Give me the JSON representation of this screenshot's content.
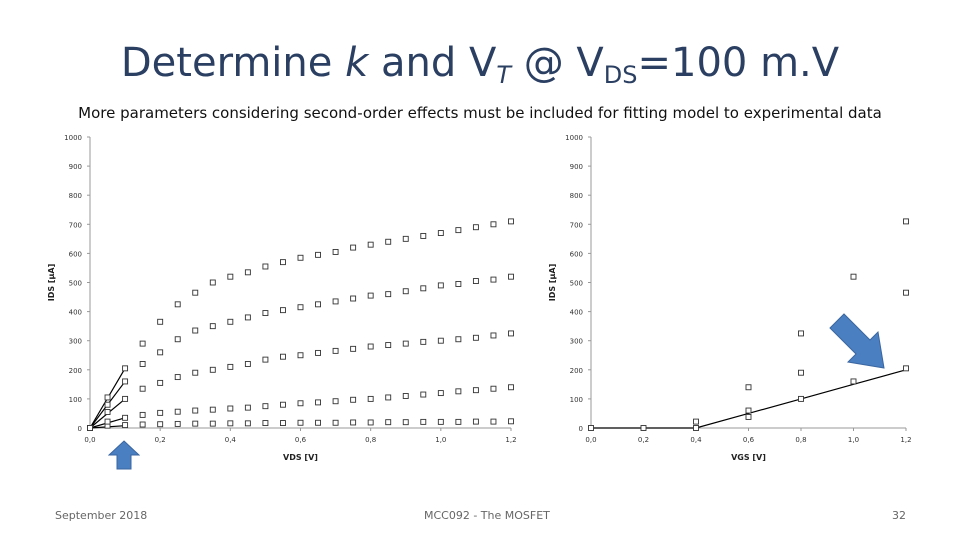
{
  "slide": {
    "title_prefix": "Determine ",
    "title_k": "k",
    "title_and": " and ",
    "title_V": "V",
    "title_T": "T",
    "title_at": " @ V",
    "title_DS": "DS",
    "title_suffix": "=100 m.V",
    "subtitle": "More parameters considering second-order effects must be included for fitting model to experimental data",
    "footer_left": "September 2018",
    "footer_center": "MCC092 - The MOSFET",
    "footer_right": "32"
  },
  "colors": {
    "title": "#2a3f62",
    "arrow": "#4a7fc1",
    "marker": "#333333",
    "line": "#000000"
  },
  "icons": [
    "up-arrow-icon",
    "down-right-arrow-icon"
  ],
  "chart_data": [
    {
      "type": "scatter",
      "xlabel": "VDS [V]",
      "ylabel": "IDS [μA]",
      "xlim": [
        0,
        1.2
      ],
      "ylim": [
        0,
        1000
      ],
      "xticks": [
        "0,0",
        "0,2",
        "0,4",
        "0,6",
        "0,8",
        "1,0",
        "1,2"
      ],
      "yticks": [
        "0",
        "100",
        "200",
        "300",
        "400",
        "500",
        "600",
        "700",
        "800",
        "900",
        "1000"
      ],
      "grid": false,
      "series": [
        {
          "x": [
            0,
            0.05,
            0.1,
            0.15,
            0.2,
            0.25,
            0.3,
            0.35,
            0.4,
            0.45,
            0.5,
            0.55,
            0.6,
            0.65,
            0.7,
            0.75,
            0.8,
            0.85,
            0.9,
            0.95,
            1.0,
            1.05,
            1.1,
            1.15,
            1.2
          ],
          "y": [
            0,
            8,
            10,
            12,
            13,
            14,
            15,
            15,
            16,
            16,
            17,
            17,
            18,
            18,
            18,
            19,
            19,
            20,
            20,
            21,
            21,
            21,
            22,
            22,
            23
          ]
        },
        {
          "x": [
            0,
            0.05,
            0.1,
            0.15,
            0.2,
            0.25,
            0.3,
            0.35,
            0.4,
            0.45,
            0.5,
            0.55,
            0.6,
            0.65,
            0.7,
            0.75,
            0.8,
            0.85,
            0.9,
            0.95,
            1.0,
            1.05,
            1.1,
            1.15,
            1.2
          ],
          "y": [
            0,
            22,
            35,
            45,
            52,
            56,
            60,
            63,
            67,
            70,
            75,
            80,
            85,
            88,
            92,
            97,
            100,
            105,
            110,
            115,
            120,
            126,
            130,
            135,
            140
          ]
        },
        {
          "x": [
            0,
            0.05,
            0.1,
            0.15,
            0.2,
            0.25,
            0.3,
            0.35,
            0.4,
            0.45,
            0.5,
            0.55,
            0.6,
            0.65,
            0.7,
            0.75,
            0.8,
            0.85,
            0.9,
            0.95,
            1.0,
            1.05,
            1.1,
            1.15,
            1.2
          ],
          "y": [
            0,
            55,
            100,
            135,
            155,
            175,
            190,
            200,
            210,
            220,
            235,
            245,
            250,
            258,
            265,
            272,
            280,
            285,
            290,
            296,
            300,
            305,
            310,
            318,
            325
          ]
        },
        {
          "x": [
            0,
            0.05,
            0.1,
            0.15,
            0.2,
            0.25,
            0.3,
            0.35,
            0.4,
            0.45,
            0.5,
            0.55,
            0.6,
            0.65,
            0.7,
            0.75,
            0.8,
            0.85,
            0.9,
            0.95,
            1.0,
            1.05,
            1.1,
            1.15,
            1.2
          ],
          "y": [
            0,
            80,
            160,
            220,
            260,
            305,
            335,
            350,
            365,
            380,
            395,
            405,
            415,
            425,
            435,
            445,
            455,
            460,
            470,
            480,
            490,
            495,
            505,
            510,
            520
          ]
        },
        {
          "x": [
            0,
            0.05,
            0.1,
            0.15,
            0.2,
            0.25,
            0.3,
            0.35,
            0.4,
            0.45,
            0.5,
            0.55,
            0.6,
            0.65,
            0.7,
            0.75,
            0.8,
            0.85,
            0.9,
            0.95,
            1.0,
            1.05,
            1.1,
            1.15,
            1.2
          ],
          "y": [
            0,
            105,
            205,
            290,
            365,
            425,
            465,
            500,
            520,
            535,
            555,
            570,
            585,
            595,
            605,
            620,
            630,
            640,
            650,
            660,
            670,
            680,
            690,
            700,
            710
          ]
        }
      ],
      "fit_lines": [
        {
          "x": [
            0,
            0.1
          ],
          "y": [
            0,
            8
          ]
        },
        {
          "x": [
            0,
            0.1
          ],
          "y": [
            0,
            35
          ]
        },
        {
          "x": [
            0,
            0.1
          ],
          "y": [
            0,
            100
          ]
        },
        {
          "x": [
            0,
            0.1
          ],
          "y": [
            0,
            160
          ]
        },
        {
          "x": [
            0,
            0.1
          ],
          "y": [
            0,
            205
          ]
        }
      ]
    },
    {
      "type": "scatter",
      "xlabel": "VGS [V]",
      "ylabel": "IDS [μA]",
      "xlim": [
        0,
        1.2
      ],
      "ylim": [
        0,
        1000
      ],
      "xticks": [
        "0,0",
        "0,2",
        "0,4",
        "0,6",
        "0,8",
        "1,0",
        "1,2"
      ],
      "yticks": [
        "0",
        "100",
        "200",
        "300",
        "400",
        "500",
        "600",
        "700",
        "800",
        "900",
        "1000"
      ],
      "grid": false,
      "series": [
        {
          "x": [
            0,
            0.2,
            0.4,
            0.4,
            0.6,
            0.6,
            0.6,
            0.8,
            0.8,
            0.8,
            1.0,
            1.0,
            1.2,
            1.2,
            1.2
          ],
          "y": [
            0,
            0,
            0,
            22,
            140,
            60,
            38,
            325,
            190,
            100,
            520,
            160,
            710,
            465,
            205
          ]
        }
      ],
      "fit_lines": [
        {
          "x": [
            0,
            0.4,
            0.6,
            0.8,
            1.0,
            1.2
          ],
          "y": [
            0,
            0,
            50,
            100,
            150,
            200
          ]
        }
      ]
    }
  ]
}
